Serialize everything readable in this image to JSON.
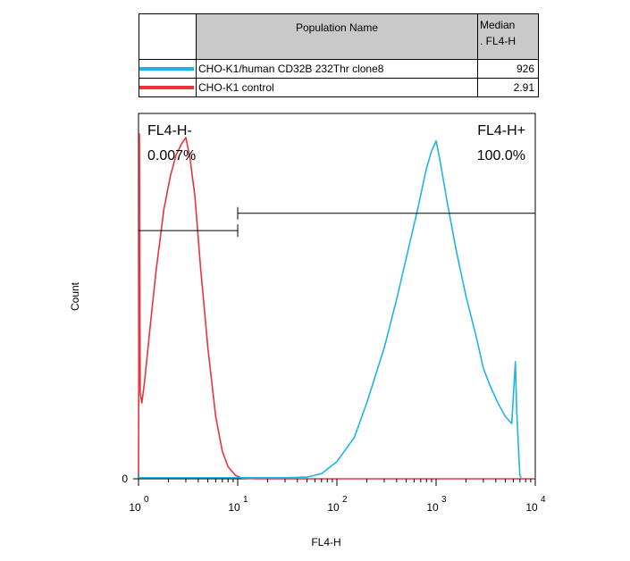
{
  "legend": {
    "header_population": "Population Name",
    "header_median_line1": "Median",
    "header_median_line2": ". FL4-H",
    "rows": [
      {
        "name": "CHO-K1/human CD32B 232Thr clone8",
        "median": "926",
        "color": "#1eb4e6"
      },
      {
        "name": "CHO-K1 control",
        "median": "2.91",
        "color": "#e8343a"
      }
    ]
  },
  "chart_data": {
    "type": "line",
    "xlabel": "FL4-H",
    "ylabel": "Count",
    "x_scale": "log",
    "xlim": [
      1,
      10000
    ],
    "ylim": [
      0,
      100
    ],
    "y_tick_labels": [
      "0"
    ],
    "x_tick_labels": [
      {
        "base": "10",
        "exp": "0",
        "value": 1
      },
      {
        "base": "10",
        "exp": "1",
        "value": 10
      },
      {
        "base": "10",
        "exp": "2",
        "value": 100
      },
      {
        "base": "10",
        "exp": "3",
        "value": 1000
      },
      {
        "base": "10",
        "exp": "4",
        "value": 10000
      }
    ],
    "gates": [
      {
        "name": "FL4-H-",
        "percent": "0.007%",
        "x_range": [
          1,
          10
        ],
        "y": 72
      },
      {
        "name": "FL4-H+",
        "percent": "100.0%",
        "x_range": [
          10,
          10000
        ],
        "y": 77
      }
    ],
    "series": [
      {
        "color": "#e8343a",
        "points": [
          [
            1,
            2
          ],
          [
            1.02,
            100
          ],
          [
            1.04,
            25
          ],
          [
            1.08,
            22
          ],
          [
            1.15,
            28
          ],
          [
            1.3,
            43
          ],
          [
            1.5,
            60
          ],
          [
            1.8,
            78
          ],
          [
            2.1,
            88
          ],
          [
            2.4,
            94
          ],
          [
            2.7,
            97
          ],
          [
            3.0,
            99
          ],
          [
            3.3,
            93
          ],
          [
            3.7,
            82
          ],
          [
            4.2,
            62
          ],
          [
            5.0,
            38
          ],
          [
            6.0,
            18
          ],
          [
            7.0,
            8
          ],
          [
            8.0,
            3.5
          ],
          [
            9.5,
            1
          ],
          [
            11,
            0.2
          ],
          [
            15,
            0
          ],
          [
            10000,
            0
          ]
        ]
      },
      {
        "color": "#1eb4e6",
        "points": [
          [
            1,
            0.3
          ],
          [
            30,
            0.3
          ],
          [
            50,
            0.5
          ],
          [
            70,
            1.5
          ],
          [
            100,
            5
          ],
          [
            150,
            12
          ],
          [
            200,
            22
          ],
          [
            300,
            38
          ],
          [
            400,
            52
          ],
          [
            500,
            64
          ],
          [
            650,
            78
          ],
          [
            800,
            90
          ],
          [
            900,
            95
          ],
          [
            1000,
            98
          ],
          [
            1100,
            92
          ],
          [
            1300,
            80
          ],
          [
            1600,
            66
          ],
          [
            2000,
            53
          ],
          [
            2500,
            42
          ],
          [
            3000,
            32
          ],
          [
            3500,
            27
          ],
          [
            4200,
            22
          ],
          [
            5000,
            18
          ],
          [
            5800,
            16
          ],
          [
            6300,
            34
          ],
          [
            6500,
            20
          ],
          [
            6800,
            8
          ],
          [
            7000,
            1
          ],
          [
            7200,
            0.3
          ]
        ]
      }
    ]
  }
}
